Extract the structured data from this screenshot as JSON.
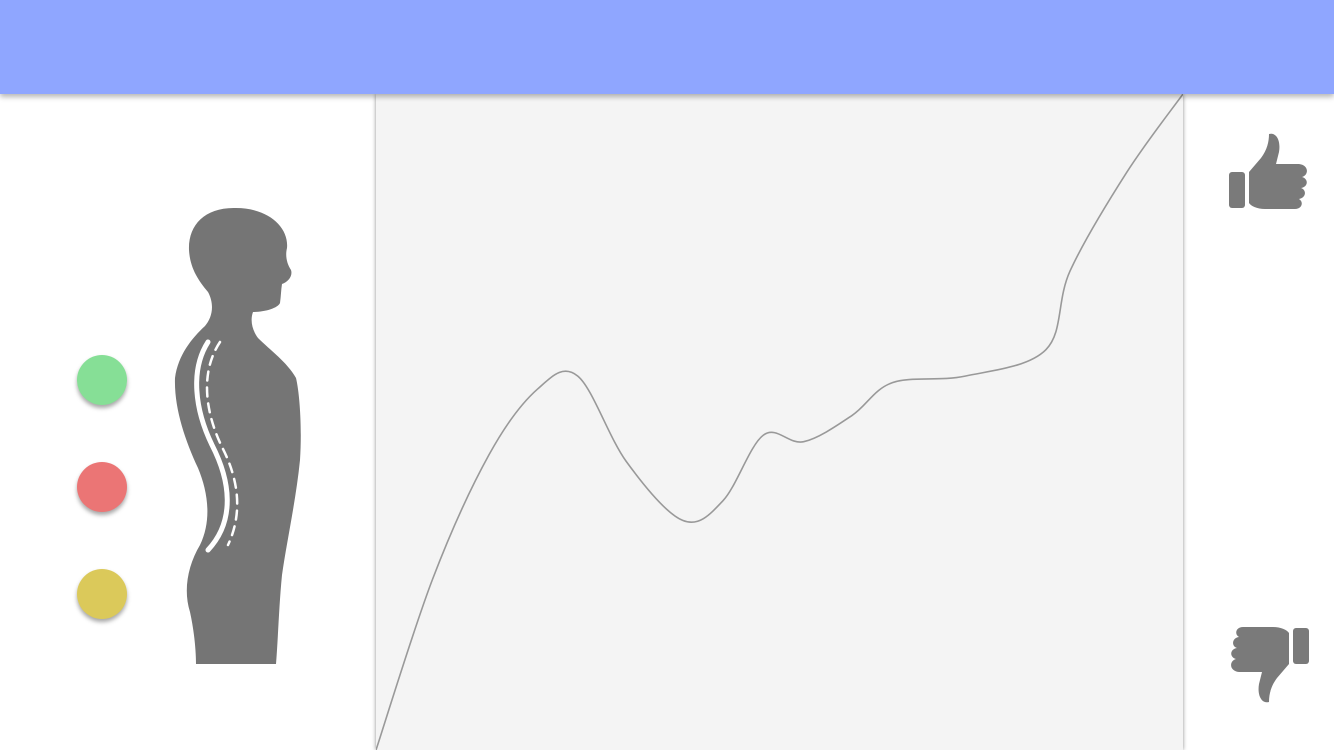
{
  "colors": {
    "header": "#8fa6ff",
    "chart_background": "#f4f4f4",
    "curve_stroke": "#999999",
    "figure": "#757575",
    "spine_marking": "#ffffff",
    "thumb_icon": "#7a7a7a"
  },
  "status_indicators": [
    {
      "name": "good-posture",
      "color": "#86df96"
    },
    {
      "name": "bad-posture",
      "color": "#eb7575"
    },
    {
      "name": "warning-posture",
      "color": "#dbc95a"
    }
  ],
  "figure": {
    "icon": "human-spine-silhouette-icon"
  },
  "feedback": {
    "positive_icon": "thumbs-up-icon",
    "negative_icon": "thumbs-down-icon"
  },
  "chart_data": {
    "type": "line",
    "title": "",
    "xlabel": "",
    "ylabel": "",
    "grid": false,
    "xlim": [
      0,
      100
    ],
    "ylim": [
      0,
      100
    ],
    "series": [
      {
        "x": [
          0,
          7,
          14,
          20,
          25,
          31,
          38,
          43,
          48,
          53,
          59,
          64,
          73,
          83,
          86,
          93,
          100
        ],
        "y": [
          0,
          26,
          45,
          55,
          57,
          44,
          35,
          38,
          48,
          47,
          51,
          56,
          57,
          61,
          73,
          88,
          100
        ]
      }
    ]
  }
}
